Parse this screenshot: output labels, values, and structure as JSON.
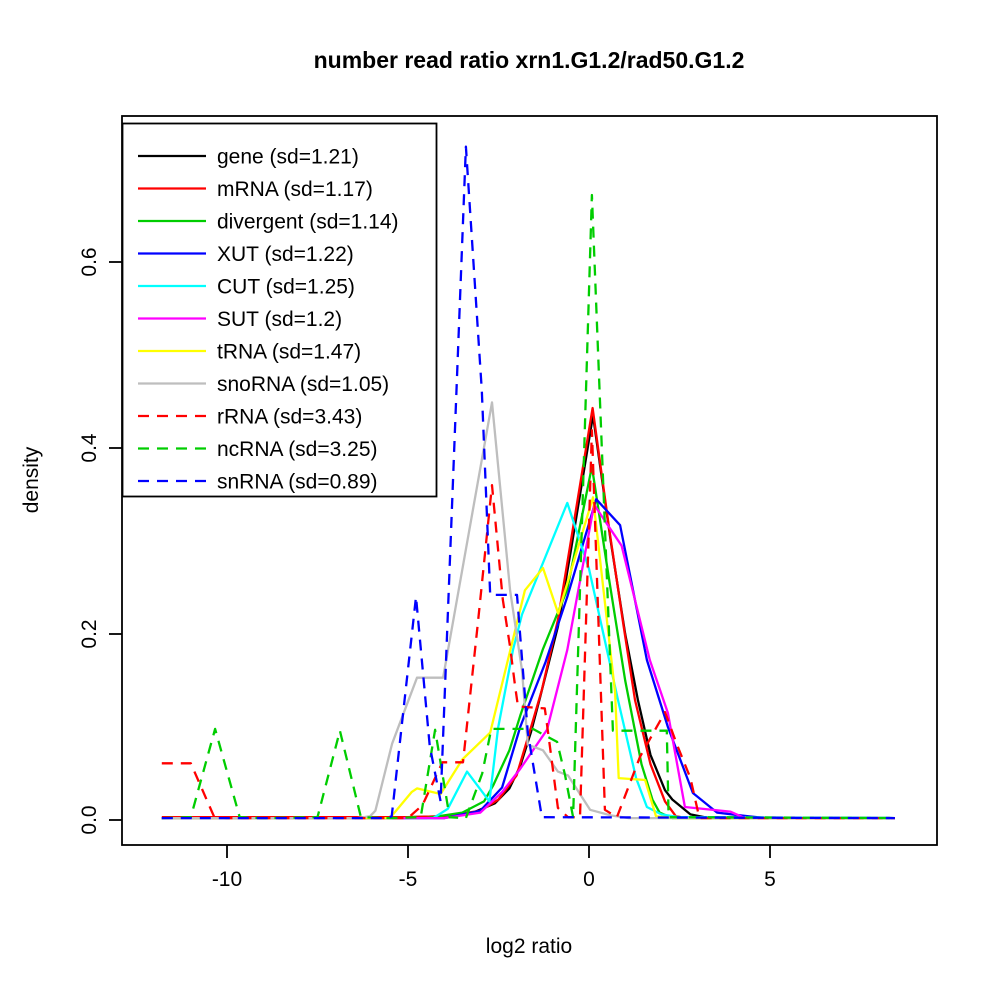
{
  "figure": {
    "background": "#ffffff",
    "border_color": "#000000"
  },
  "chart_data": {
    "type": "line",
    "title": "number read ratio xrn1.G1.2/rad50.G1.2",
    "xlabel": "log2 ratio",
    "ylabel": "density",
    "grid": false,
    "legend_position": "top-left",
    "x_axis": {
      "ticks": [
        -10,
        -5,
        0,
        5
      ],
      "tick_labels": [
        "-10",
        "-5",
        "0",
        "5"
      ],
      "range": [
        -11.8,
        8.45
      ]
    },
    "y_axis": {
      "ticks": [
        0.0,
        0.2,
        0.4,
        0.6
      ],
      "tick_labels": [
        "0.0",
        "0.2",
        "0.4",
        "0.6"
      ],
      "range": [
        0,
        0.73
      ]
    },
    "series": [
      {
        "name": "gene",
        "sd": "1.21",
        "legend_label": "gene (sd=1.21)",
        "color": "#000000",
        "line_style": "solid",
        "points": [
          [
            -11.8,
            0.002
          ],
          [
            -8,
            0.002
          ],
          [
            -5,
            0.003
          ],
          [
            -4,
            0.004
          ],
          [
            -3.2,
            0.008
          ],
          [
            -2.6,
            0.018
          ],
          [
            -2.2,
            0.034
          ],
          [
            -1.9,
            0.058
          ],
          [
            -1.6,
            0.095
          ],
          [
            -1.35,
            0.132
          ],
          [
            -0.86,
            0.208
          ],
          [
            -0.5,
            0.29
          ],
          [
            0.11,
            0.435
          ],
          [
            0.6,
            0.3
          ],
          [
            1.0,
            0.2
          ],
          [
            1.35,
            0.129
          ],
          [
            1.7,
            0.07
          ],
          [
            2.1,
            0.032
          ],
          [
            2.3,
            0.022
          ],
          [
            2.8,
            0.006
          ],
          [
            3.2,
            0.003
          ],
          [
            8.45,
            0.002
          ]
        ]
      },
      {
        "name": "mRNA",
        "sd": "1.17",
        "legend_label": "mRNA (sd=1.17)",
        "color": "#ff0000",
        "line_style": "solid",
        "points": [
          [
            -11.8,
            0.003
          ],
          [
            -5,
            0.003
          ],
          [
            -4,
            0.004
          ],
          [
            -3,
            0.01
          ],
          [
            -2.5,
            0.022
          ],
          [
            -2.0,
            0.048
          ],
          [
            -1.6,
            0.1
          ],
          [
            -1.3,
            0.14
          ],
          [
            -0.86,
            0.215
          ],
          [
            -0.5,
            0.3
          ],
          [
            0.1,
            0.443
          ],
          [
            0.55,
            0.315
          ],
          [
            0.95,
            0.21
          ],
          [
            1.27,
            0.129
          ],
          [
            1.7,
            0.06
          ],
          [
            2.1,
            0.02
          ],
          [
            2.4,
            0.004
          ],
          [
            2.7,
            0.002
          ],
          [
            8.45,
            0.002
          ]
        ]
      },
      {
        "name": "divergent",
        "sd": "1.14",
        "legend_label": "divergent (sd=1.14)",
        "color": "#00cd00",
        "line_style": "solid",
        "points": [
          [
            -11.8,
            0.002
          ],
          [
            -4.5,
            0.002
          ],
          [
            -3.5,
            0.008
          ],
          [
            -2.9,
            0.02
          ],
          [
            -2.65,
            0.037
          ],
          [
            -2.2,
            0.075
          ],
          [
            -1.9,
            0.112
          ],
          [
            -1.27,
            0.184
          ],
          [
            -0.6,
            0.248
          ],
          [
            0.08,
            0.38
          ],
          [
            0.55,
            0.26
          ],
          [
            1.0,
            0.15
          ],
          [
            1.45,
            0.06
          ],
          [
            1.75,
            0.022
          ],
          [
            1.95,
            0.008
          ],
          [
            2.3,
            0.002
          ],
          [
            8.45,
            0.002
          ]
        ]
      },
      {
        "name": "XUT",
        "sd": "1.22",
        "legend_label": "XUT (sd=1.22)",
        "color": "#0000ff",
        "line_style": "solid",
        "points": [
          [
            -11.8,
            0.002
          ],
          [
            -4,
            0.002
          ],
          [
            -3,
            0.01
          ],
          [
            -2.4,
            0.035
          ],
          [
            -1.9,
            0.1
          ],
          [
            -1.2,
            0.17
          ],
          [
            -0.6,
            0.24
          ],
          [
            0.2,
            0.345
          ],
          [
            0.86,
            0.317
          ],
          [
            1.6,
            0.172
          ],
          [
            2.18,
            0.1
          ],
          [
            2.87,
            0.029
          ],
          [
            3.54,
            0.008
          ],
          [
            4.4,
            0.004
          ],
          [
            4.9,
            0.002
          ],
          [
            8.45,
            0.002
          ]
        ]
      },
      {
        "name": "CUT",
        "sd": "1.25",
        "legend_label": "CUT (sd=1.25)",
        "color": "#00ffff",
        "line_style": "solid",
        "points": [
          [
            -11.8,
            0.002
          ],
          [
            -4.3,
            0.002
          ],
          [
            -3.9,
            0.012
          ],
          [
            -3.37,
            0.052
          ],
          [
            -2.75,
            0.02
          ],
          [
            -2.51,
            0.099
          ],
          [
            -2.1,
            0.183
          ],
          [
            -1.85,
            0.221
          ],
          [
            -0.6,
            0.341
          ],
          [
            0.0,
            0.27
          ],
          [
            0.8,
            0.129
          ],
          [
            1.3,
            0.045
          ],
          [
            1.6,
            0.014
          ],
          [
            2.0,
            0.006
          ],
          [
            2.5,
            0.003
          ],
          [
            8.45,
            0.002
          ]
        ]
      },
      {
        "name": "SUT",
        "sd": "1.2",
        "legend_label": "SUT (sd=1.2)",
        "color": "#ff00ff",
        "line_style": "solid",
        "points": [
          [
            -11.8,
            0.002
          ],
          [
            -4,
            0.002
          ],
          [
            -3,
            0.008
          ],
          [
            -2.4,
            0.03
          ],
          [
            -1.9,
            0.055
          ],
          [
            -1.16,
            0.097
          ],
          [
            -0.6,
            0.183
          ],
          [
            0.14,
            0.339
          ],
          [
            0.9,
            0.295
          ],
          [
            1.68,
            0.172
          ],
          [
            2.18,
            0.115
          ],
          [
            2.65,
            0.014
          ],
          [
            3.9,
            0.009
          ],
          [
            4.3,
            0.002
          ],
          [
            8.45,
            0.002
          ]
        ]
      },
      {
        "name": "tRNA",
        "sd": "1.47",
        "legend_label": "tRNA (sd=1.47)",
        "color": "#ffff00",
        "line_style": "solid",
        "points": [
          [
            -11.8,
            0.002
          ],
          [
            -5.5,
            0.002
          ],
          [
            -4.9,
            0.03
          ],
          [
            -4.75,
            0.034
          ],
          [
            -4.1,
            0.028
          ],
          [
            -3.5,
            0.065
          ],
          [
            -2.73,
            0.094
          ],
          [
            -1.77,
            0.247
          ],
          [
            -1.27,
            0.271
          ],
          [
            -0.85,
            0.222
          ],
          [
            0.11,
            0.347
          ],
          [
            0.72,
            0.137
          ],
          [
            0.82,
            0.045
          ],
          [
            1.55,
            0.043
          ],
          [
            1.85,
            0.004
          ],
          [
            2.4,
            0.002
          ],
          [
            8.45,
            0.002
          ]
        ]
      },
      {
        "name": "snoRNA",
        "sd": "1.05",
        "legend_label": "snoRNA (sd=1.05)",
        "color": "#bebebe",
        "line_style": "solid",
        "points": [
          [
            -11.8,
            0.002
          ],
          [
            -6.4,
            0.002
          ],
          [
            -6.05,
            0.004
          ],
          [
            -5.9,
            0.01
          ],
          [
            -5.44,
            0.082
          ],
          [
            -4.75,
            0.153
          ],
          [
            -4.03,
            0.153
          ],
          [
            -2.68,
            0.449
          ],
          [
            -2.18,
            0.247
          ],
          [
            -1.85,
            0.161
          ],
          [
            -1.69,
            0.081
          ],
          [
            -1.27,
            0.075
          ],
          [
            -0.86,
            0.052
          ],
          [
            -0.58,
            0.048
          ],
          [
            0.03,
            0.011
          ],
          [
            0.6,
            0.005
          ],
          [
            1.1,
            0.002
          ],
          [
            8.45,
            0.002
          ]
        ]
      },
      {
        "name": "rRNA",
        "sd": "3.43",
        "legend_label": "rRNA (sd=3.43)",
        "color": "#ff0000",
        "line_style": "dashed",
        "points": [
          [
            -11.8,
            0.061
          ],
          [
            -11.0,
            0.061
          ],
          [
            -10.35,
            0.003
          ],
          [
            -10,
            0.002
          ],
          [
            -5.0,
            0.002
          ],
          [
            -4.6,
            0.016
          ],
          [
            -4.05,
            0.062
          ],
          [
            -3.48,
            0.062
          ],
          [
            -3.07,
            0.212
          ],
          [
            -2.68,
            0.36
          ],
          [
            -2.38,
            0.237
          ],
          [
            -2.18,
            0.186
          ],
          [
            -2.04,
            0.143
          ],
          [
            -1.96,
            0.122
          ],
          [
            -1.22,
            0.12
          ],
          [
            -1.13,
            0.094
          ],
          [
            -0.99,
            0.052
          ],
          [
            -0.86,
            0.013
          ],
          [
            -0.58,
            0.003
          ],
          [
            -0.25,
            0.003
          ],
          [
            0.08,
            0.419
          ],
          [
            0.44,
            0.011
          ],
          [
            0.77,
            0.003
          ],
          [
            1.41,
            0.068
          ],
          [
            2.1,
            0.116
          ],
          [
            2.43,
            0.081
          ],
          [
            2.8,
            0.045
          ],
          [
            3.05,
            0.002
          ],
          [
            8.45,
            0.002
          ]
        ]
      },
      {
        "name": "ncRNA",
        "sd": "3.25",
        "legend_label": "ncRNA (sd=3.25)",
        "color": "#00cd00",
        "line_style": "dashed",
        "points": [
          [
            -11.8,
            0.002
          ],
          [
            -11.0,
            0.003
          ],
          [
            -10.33,
            0.098
          ],
          [
            -9.65,
            0.003
          ],
          [
            -9.0,
            0.002
          ],
          [
            -7.5,
            0.003
          ],
          [
            -6.88,
            0.096
          ],
          [
            -6.3,
            0.003
          ],
          [
            -5.5,
            0.002
          ],
          [
            -4.65,
            0.003
          ],
          [
            -4.25,
            0.097
          ],
          [
            -3.85,
            0.003
          ],
          [
            -3.4,
            0.002
          ],
          [
            -2.95,
            0.05
          ],
          [
            -2.7,
            0.098
          ],
          [
            -1.55,
            0.098
          ],
          [
            -0.88,
            0.084
          ],
          [
            -0.66,
            0.048
          ],
          [
            -0.44,
            0.003
          ],
          [
            0.08,
            0.672
          ],
          [
            0.66,
            0.096
          ],
          [
            2.15,
            0.096
          ],
          [
            2.2,
            0.003
          ],
          [
            8.45,
            0.002
          ]
        ]
      },
      {
        "name": "snRNA",
        "sd": "0.89",
        "legend_label": "snRNA (sd=0.89)",
        "color": "#0000ff",
        "line_style": "dashed",
        "points": [
          [
            -11.8,
            0.002
          ],
          [
            -5.6,
            0.002
          ],
          [
            -5.45,
            0.004
          ],
          [
            -4.78,
            0.24
          ],
          [
            -4.4,
            0.08
          ],
          [
            -4.1,
            0.02
          ],
          [
            -3.4,
            0.724
          ],
          [
            -2.96,
            0.462
          ],
          [
            -2.73,
            0.242
          ],
          [
            -1.99,
            0.242
          ],
          [
            -1.69,
            0.094
          ],
          [
            -1.3,
            0.003
          ],
          [
            8.45,
            0.002
          ]
        ]
      }
    ]
  }
}
